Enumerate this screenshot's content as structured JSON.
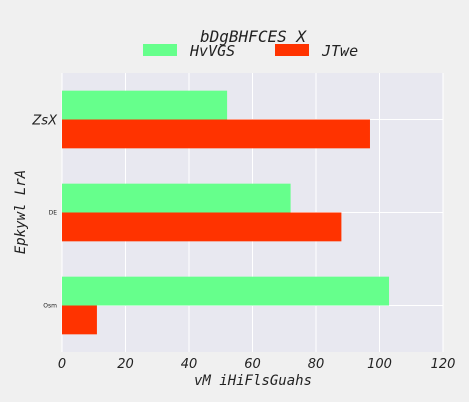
{
  "chart_data": {
    "type": "bar",
    "orientation": "horizontal",
    "title": "bDgBHFCES X",
    "xlabel": "vM iHiFlsGuahs",
    "ylabel": "Epkywl  LrA",
    "categories": [
      "ZsX",
      "DE",
      "Osm"
    ],
    "series": [
      {
        "name": "HvVGS",
        "color": "#66ff8c",
        "values": [
          52,
          72,
          103
        ]
      },
      {
        "name": "JTwe",
        "color": "#ff3300",
        "values": [
          97,
          88,
          11
        ]
      }
    ],
    "xlim": [
      0,
      120
    ],
    "xticks": [
      "0",
      "20",
      "40",
      "60",
      "80",
      "100",
      "120"
    ],
    "grid": true,
    "legend_position": "top"
  }
}
